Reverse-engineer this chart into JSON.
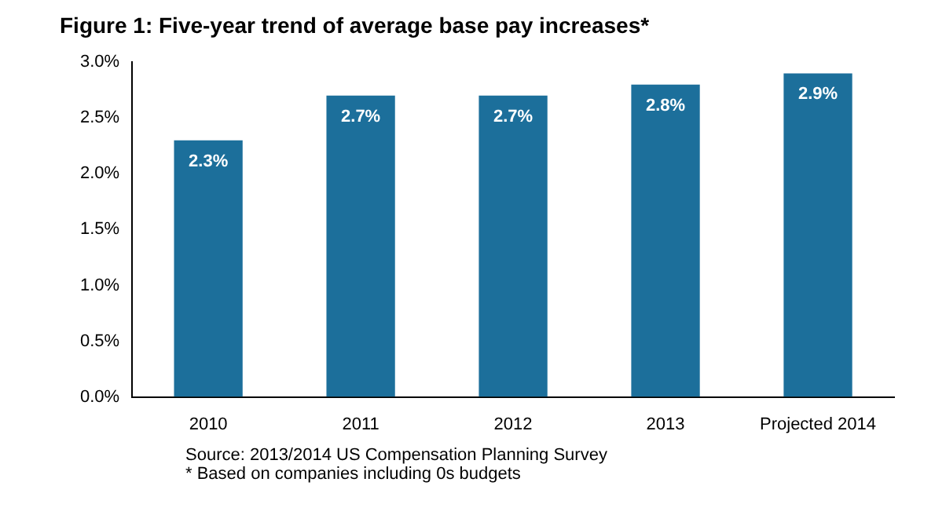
{
  "chart_data": {
    "type": "bar",
    "title": "Figure 1: Five-year trend of average base pay increases*",
    "categories": [
      "2010",
      "2011",
      "2012",
      "2013",
      "Projected 2014"
    ],
    "values": [
      2.3,
      2.7,
      2.7,
      2.8,
      2.9
    ],
    "value_labels": [
      "2.3%",
      "2.7%",
      "2.7%",
      "2.8%",
      "2.9%"
    ],
    "color": "#1c6f9b",
    "ylim": [
      0,
      3
    ],
    "yticks": [
      {
        "value": 0,
        "label": "0.0%"
      },
      {
        "value": 0.5,
        "label": "0.5%"
      },
      {
        "value": 1,
        "label": "1.0%"
      },
      {
        "value": 1.5,
        "label": "1.5%"
      },
      {
        "value": 2,
        "label": "2.0%"
      },
      {
        "value": 2.5,
        "label": "2.5%"
      },
      {
        "value": 3,
        "label": "3.0%"
      }
    ],
    "grid": false,
    "legend": false,
    "annotations": [
      "Source: 2013/2014 US Compensation Planning Survey",
      "* Based on companies including 0s budgets"
    ]
  }
}
